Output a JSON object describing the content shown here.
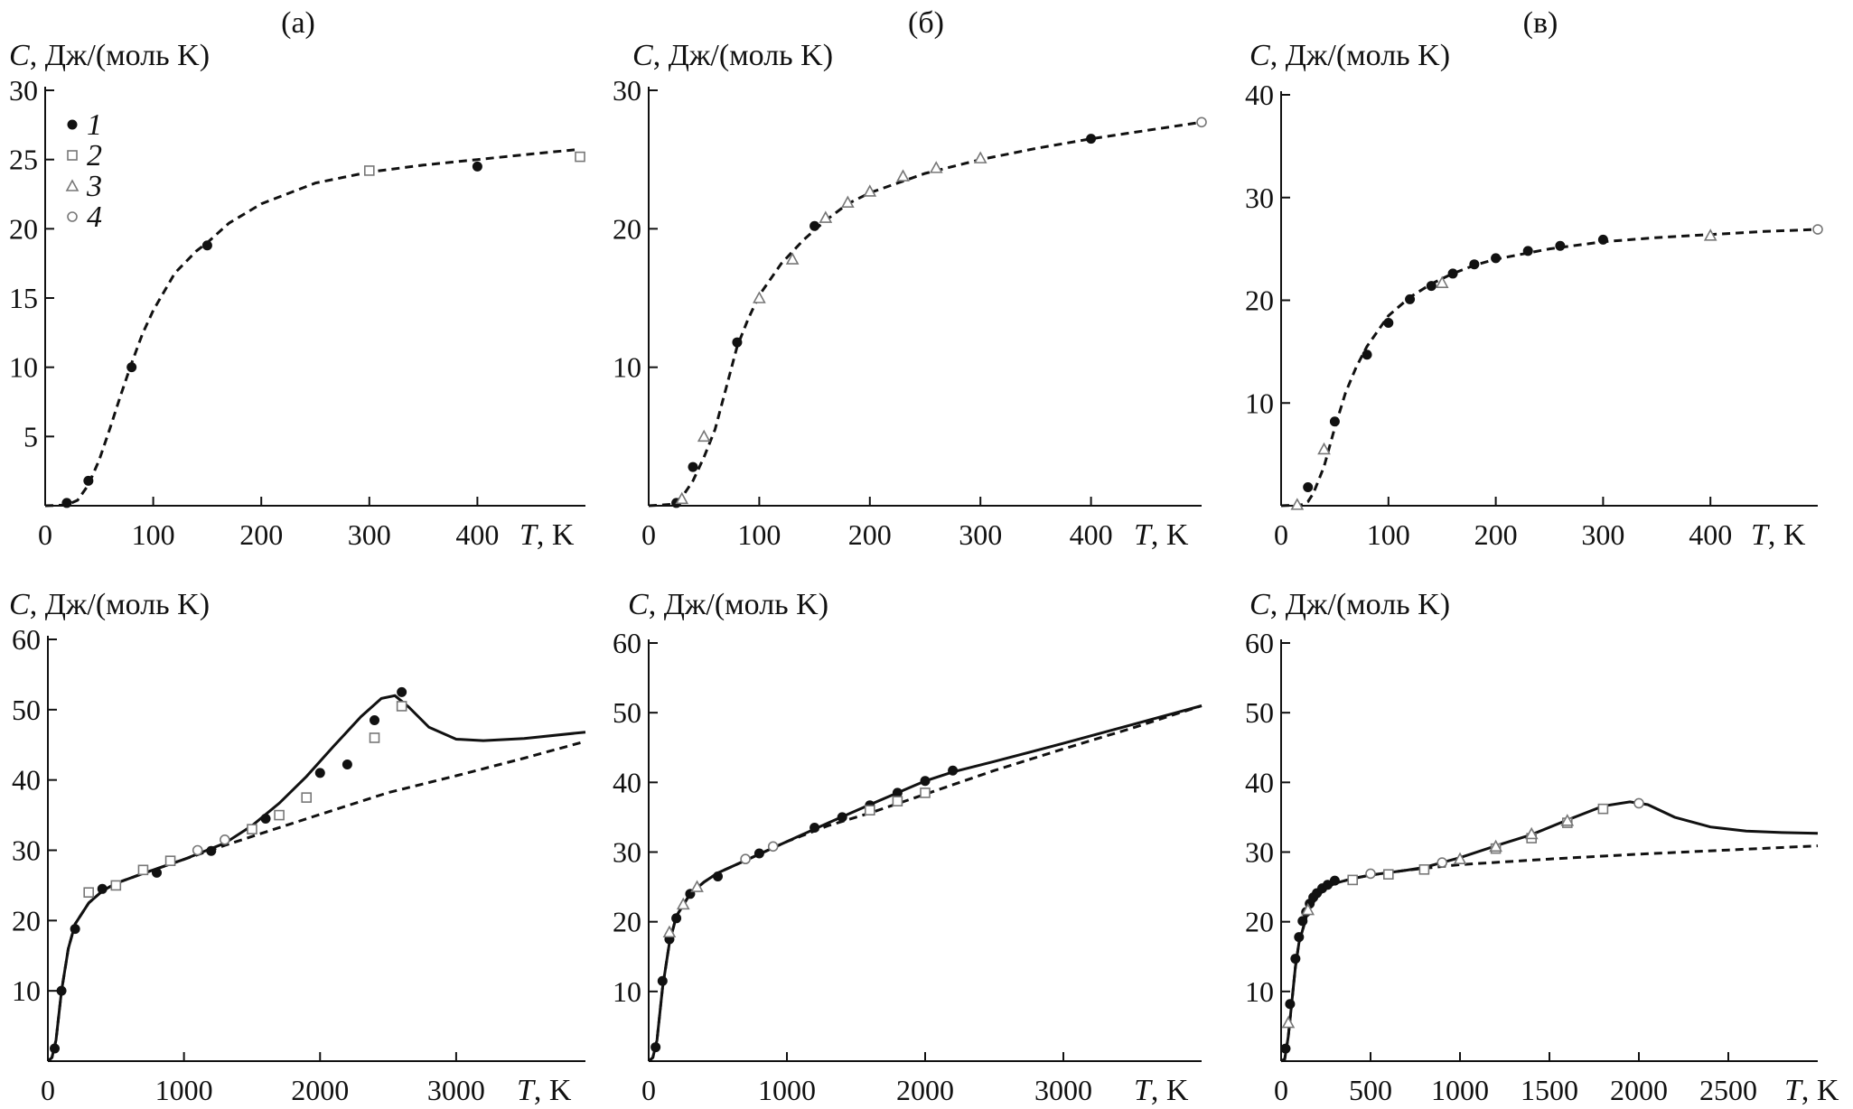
{
  "figure": {
    "panel_tags": [
      "(а)",
      "(б)",
      "(в)"
    ],
    "legend": [
      {
        "label": "1",
        "marker": "filled-circle-icon"
      },
      {
        "label": "2",
        "marker": "open-square-icon"
      },
      {
        "label": "3",
        "marker": "open-triangle-icon"
      },
      {
        "label": "4",
        "marker": "open-circle-icon"
      }
    ],
    "colors": {
      "ink": "#111111",
      "marker_open": "#777777"
    }
  },
  "chart_data": [
    {
      "type": "scatter",
      "panel": "а-top",
      "ylabel_var": "C",
      "ylabel_units": ", Дж/(моль K)",
      "xlabel_var": "T",
      "xlabel_units": ", K",
      "xlim": [
        0,
        500
      ],
      "ylim": [
        0,
        30
      ],
      "xticks": [
        0,
        100,
        200,
        300,
        400
      ],
      "yticks": [
        5,
        10,
        15,
        20,
        25,
        30
      ],
      "dashed_curve": {
        "x": [
          0,
          20,
          30,
          40,
          50,
          60,
          70,
          80,
          90,
          100,
          120,
          140,
          150,
          170,
          200,
          250,
          300,
          350,
          400,
          450,
          490
        ],
        "y": [
          0,
          0.05,
          0.4,
          1.5,
          3.3,
          5.6,
          8.0,
          10.3,
          12.4,
          14.1,
          16.8,
          18.4,
          19.0,
          20.4,
          21.8,
          23.3,
          24.1,
          24.6,
          25.0,
          25.4,
          25.7
        ]
      },
      "series": [
        {
          "name": "1",
          "marker": "filled-circle",
          "x": [
            20,
            40,
            80,
            150,
            400
          ],
          "y": [
            0.2,
            1.8,
            10.0,
            18.8,
            24.5
          ]
        },
        {
          "name": "2",
          "marker": "open-square",
          "x": [
            300,
            495
          ],
          "y": [
            24.2,
            25.2
          ]
        }
      ]
    },
    {
      "type": "scatter",
      "panel": "б-top",
      "ylabel_var": "C",
      "ylabel_units": ", Дж/(моль K)",
      "xlabel_var": "T",
      "xlabel_units": ", K",
      "xlim": [
        0,
        500
      ],
      "ylim": [
        0,
        30
      ],
      "xticks": [
        0,
        100,
        200,
        300,
        400
      ],
      "yticks": [
        10,
        20,
        30
      ],
      "dashed_curve": {
        "x": [
          0,
          20,
          30,
          40,
          50,
          60,
          70,
          80,
          90,
          100,
          120,
          140,
          160,
          180,
          200,
          250,
          300,
          350,
          400,
          450,
          500
        ],
        "y": [
          0,
          0.1,
          0.6,
          1.8,
          3.5,
          5.5,
          8.5,
          11.5,
          13.5,
          15.2,
          17.5,
          19.2,
          20.6,
          21.8,
          22.6,
          24.0,
          25.0,
          25.8,
          26.5,
          27.1,
          27.7
        ]
      },
      "series": [
        {
          "name": "1",
          "marker": "filled-circle",
          "x": [
            25,
            40,
            80,
            150,
            400
          ],
          "y": [
            0.2,
            2.8,
            11.8,
            20.2,
            26.5
          ]
        },
        {
          "name": "3",
          "marker": "open-triangle",
          "x": [
            30,
            50,
            100,
            130,
            160,
            180,
            200,
            230,
            260,
            300
          ],
          "y": [
            0.5,
            5.0,
            15.0,
            17.8,
            20.8,
            21.9,
            22.7,
            23.8,
            24.4,
            25.1
          ]
        },
        {
          "name": "4",
          "marker": "open-circle",
          "x": [
            500
          ],
          "y": [
            27.7
          ]
        }
      ]
    },
    {
      "type": "scatter",
      "panel": "в-top",
      "ylabel_var": "C",
      "ylabel_units": ", Дж/(моль K)",
      "xlabel_var": "T",
      "xlabel_units": ", K",
      "xlim": [
        0,
        500
      ],
      "ylim": [
        0,
        40
      ],
      "xticks": [
        0,
        100,
        200,
        300,
        400
      ],
      "yticks": [
        10,
        20,
        30,
        40
      ],
      "dashed_curve": {
        "x": [
          0,
          20,
          25,
          30,
          40,
          50,
          60,
          70,
          80,
          90,
          100,
          120,
          140,
          160,
          180,
          200,
          250,
          300,
          350,
          400,
          450,
          500
        ],
        "y": [
          0,
          0.1,
          0.4,
          1.2,
          3.8,
          7.6,
          11.0,
          13.5,
          15.5,
          17.0,
          18.5,
          20.3,
          21.6,
          22.6,
          23.4,
          24.0,
          25.0,
          25.7,
          26.1,
          26.4,
          26.7,
          26.9
        ]
      },
      "series": [
        {
          "name": "1",
          "marker": "filled-circle",
          "x": [
            25,
            50,
            80,
            100,
            120,
            140,
            160,
            180,
            200,
            230,
            260,
            300
          ],
          "y": [
            1.8,
            8.2,
            14.7,
            17.8,
            20.1,
            21.4,
            22.6,
            23.5,
            24.1,
            24.8,
            25.3,
            25.9
          ]
        },
        {
          "name": "3",
          "marker": "open-triangle",
          "x": [
            15,
            40,
            150,
            400
          ],
          "y": [
            0.1,
            5.5,
            21.7,
            26.3
          ]
        },
        {
          "name": "4",
          "marker": "open-circle",
          "x": [
            500
          ],
          "y": [
            26.9
          ]
        }
      ]
    },
    {
      "type": "scatter",
      "panel": "а-bottom",
      "ylabel_var": "C",
      "ylabel_units": ", Дж/(моль K)",
      "xlabel_var": "T",
      "xlabel_units": ", K",
      "xlim": [
        0,
        3950
      ],
      "ylim": [
        0,
        60
      ],
      "xticks": [
        0,
        1000,
        2000,
        3000
      ],
      "yticks": [
        10,
        20,
        30,
        40,
        50,
        60
      ],
      "dashed_curve": {
        "x": [
          0,
          30,
          60,
          100,
          150,
          200,
          300,
          400,
          500,
          700,
          1000,
          1300,
          1600,
          2000,
          2500,
          3000,
          3500,
          3950
        ],
        "y": [
          0,
          0.5,
          3.0,
          10.0,
          16.0,
          19.5,
          22.5,
          24.2,
          25.3,
          26.7,
          28.7,
          30.7,
          32.6,
          35.1,
          38.2,
          40.6,
          43.1,
          45.5
        ]
      },
      "solid_curve": {
        "x": [
          0,
          30,
          60,
          100,
          150,
          200,
          300,
          400,
          500,
          700,
          1000,
          1300,
          1500,
          1700,
          1900,
          2100,
          2300,
          2450,
          2550,
          2650,
          2800,
          3000,
          3200,
          3500,
          3950
        ],
        "y": [
          0,
          0.5,
          3.0,
          10.0,
          16.0,
          19.5,
          22.5,
          24.2,
          25.3,
          26.7,
          28.7,
          31.0,
          33.5,
          36.7,
          40.5,
          44.8,
          49.0,
          51.6,
          52.0,
          50.4,
          47.5,
          45.8,
          45.6,
          45.9,
          46.8
        ]
      },
      "series": [
        {
          "name": "1",
          "marker": "filled-circle",
          "x": [
            50,
            100,
            200,
            400,
            800,
            1200,
            1600,
            2000,
            2200,
            2400,
            2600
          ],
          "y": [
            1.8,
            10.0,
            18.8,
            24.5,
            26.8,
            29.9,
            34.5,
            41.0,
            42.2,
            48.5,
            52.5
          ]
        },
        {
          "name": "2",
          "marker": "open-square",
          "x": [
            300,
            500,
            700,
            900,
            1500,
            1700,
            1900,
            2400,
            2600
          ],
          "y": [
            24.0,
            25.0,
            27.2,
            28.5,
            33.0,
            35.0,
            37.5,
            46.0,
            50.5
          ]
        },
        {
          "name": "4",
          "marker": "open-circle",
          "x": [
            1100,
            1300
          ],
          "y": [
            30.0,
            31.5
          ]
        }
      ]
    },
    {
      "type": "scatter",
      "panel": "б-bottom",
      "ylabel_var": "C",
      "ylabel_units": ", Дж/(моль K)",
      "xlabel_var": "T",
      "xlabel_units": ", K",
      "xlim": [
        0,
        4000
      ],
      "ylim": [
        0,
        60
      ],
      "xticks": [
        0,
        1000,
        2000,
        3000
      ],
      "yticks": [
        10,
        20,
        30,
        40,
        50,
        60
      ],
      "dashed_curve": {
        "x": [
          0,
          30,
          60,
          100,
          150,
          200,
          300,
          400,
          500,
          700,
          1000,
          1300,
          1600,
          2000,
          2500,
          3000,
          3500,
          4000
        ],
        "y": [
          0,
          0.5,
          3.0,
          10.5,
          17.0,
          20.8,
          24.0,
          25.7,
          27.0,
          28.8,
          31.5,
          33.8,
          35.6,
          38.3,
          41.7,
          44.8,
          47.8,
          51.0
        ]
      },
      "solid_curve": {
        "x": [
          0,
          30,
          60,
          100,
          150,
          200,
          300,
          400,
          500,
          700,
          1000,
          1300,
          1600,
          1800,
          2000,
          2200,
          2500,
          3000,
          3500,
          4000
        ],
        "y": [
          0,
          0.5,
          3.0,
          10.5,
          17.0,
          20.8,
          24.0,
          25.7,
          27.0,
          28.8,
          31.5,
          34.2,
          36.8,
          38.5,
          40.2,
          41.5,
          43.0,
          45.6,
          48.3,
          51.0
        ]
      },
      "series": [
        {
          "name": "1",
          "marker": "filled-circle",
          "x": [
            50,
            100,
            150,
            200,
            300,
            500,
            800,
            1200,
            1400,
            1600,
            1800,
            2000,
            2200
          ],
          "y": [
            2.0,
            11.5,
            17.5,
            20.5,
            24.0,
            26.5,
            29.8,
            33.5,
            35.0,
            36.7,
            38.5,
            40.2,
            41.7
          ]
        },
        {
          "name": "2",
          "marker": "open-square",
          "x": [
            1600,
            1800,
            2000
          ],
          "y": [
            36.0,
            37.3,
            38.5
          ]
        },
        {
          "name": "3",
          "marker": "open-triangle",
          "x": [
            150,
            250,
            350
          ],
          "y": [
            18.5,
            22.5,
            25.0
          ]
        },
        {
          "name": "4",
          "marker": "open-circle",
          "x": [
            700,
            900
          ],
          "y": [
            29.0,
            30.8
          ]
        }
      ]
    },
    {
      "type": "scatter",
      "panel": "в-bottom",
      "ylabel_var": "C",
      "ylabel_units": ", Дж/(моль K)",
      "xlabel_var": "T",
      "xlabel_units": ", K",
      "xlim": [
        0,
        3000
      ],
      "ylim": [
        0,
        60
      ],
      "xticks": [
        0,
        500,
        1000,
        1500,
        2000,
        2500
      ],
      "yticks": [
        10,
        20,
        30,
        40,
        50,
        60
      ],
      "dashed_curve": {
        "x": [
          0,
          20,
          40,
          60,
          80,
          100,
          150,
          200,
          250,
          300,
          400,
          500,
          700,
          1000,
          1500,
          2000,
          2500,
          3000
        ],
        "y": [
          0,
          0.3,
          3.5,
          8.5,
          13.5,
          17.0,
          21.5,
          23.6,
          24.8,
          25.5,
          26.2,
          26.7,
          27.4,
          28.2,
          29.0,
          29.7,
          30.3,
          30.9
        ]
      },
      "solid_curve": {
        "x": [
          0,
          20,
          40,
          60,
          80,
          100,
          150,
          200,
          250,
          300,
          400,
          500,
          700,
          800,
          1000,
          1200,
          1400,
          1600,
          1800,
          1950,
          2050,
          2200,
          2400,
          2600,
          2800,
          3000
        ],
        "y": [
          0,
          0.3,
          3.5,
          8.5,
          13.5,
          17.0,
          21.5,
          23.6,
          24.8,
          25.5,
          26.2,
          26.7,
          27.4,
          27.8,
          29.2,
          30.9,
          32.5,
          34.6,
          36.6,
          37.2,
          36.8,
          35.0,
          33.6,
          33.0,
          32.8,
          32.7
        ]
      },
      "series": [
        {
          "name": "1",
          "marker": "filled-circle",
          "x": [
            25,
            50,
            80,
            100,
            120,
            140,
            160,
            180,
            200,
            230,
            260,
            300
          ],
          "y": [
            1.8,
            8.2,
            14.7,
            17.8,
            20.1,
            21.4,
            22.6,
            23.5,
            24.1,
            24.8,
            25.3,
            25.9
          ]
        },
        {
          "name": "2",
          "marker": "open-square",
          "x": [
            400,
            600,
            800,
            1200,
            1400,
            1600,
            1800
          ],
          "y": [
            26.0,
            26.8,
            27.5,
            30.5,
            32.0,
            34.2,
            36.2
          ]
        },
        {
          "name": "3",
          "marker": "open-triangle",
          "x": [
            40,
            150,
            1000,
            1200,
            1400,
            1600
          ],
          "y": [
            5.5,
            21.7,
            29.0,
            30.8,
            32.6,
            34.5
          ]
        },
        {
          "name": "4",
          "marker": "open-circle",
          "x": [
            500,
            900,
            2000
          ],
          "y": [
            26.9,
            28.5,
            37.0
          ]
        }
      ]
    }
  ]
}
